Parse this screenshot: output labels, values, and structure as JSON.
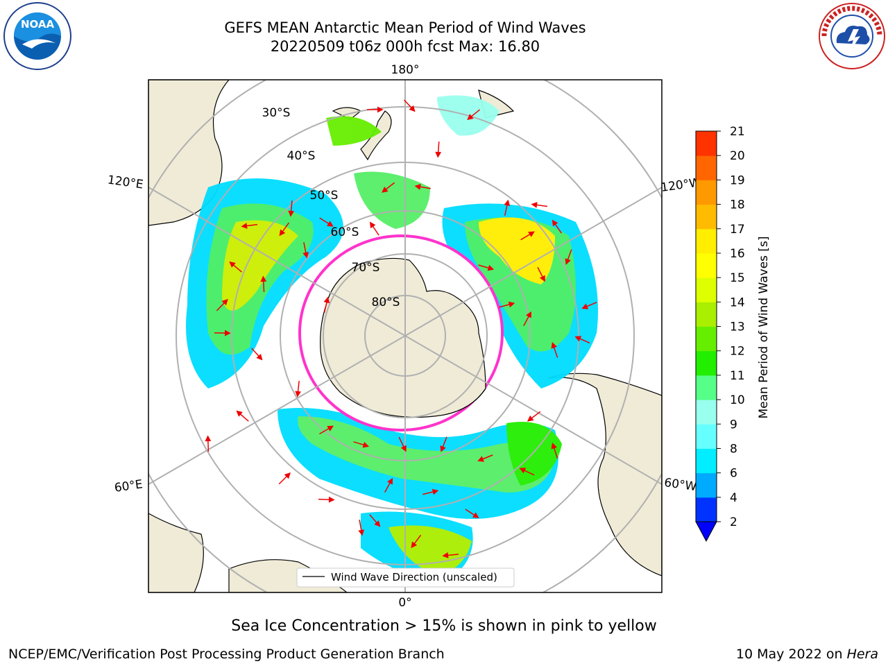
{
  "header": {
    "title_line1": "GEFS MEAN Antarctic Mean Period of Wind Waves",
    "title_line2": "20220509 t06z 000h fcst   Max: 16.80"
  },
  "logos": {
    "left": "noaa-logo",
    "right": "national-weather-service-logo"
  },
  "map": {
    "projection": "south-polar-stereographic",
    "longitude_labels": {
      "top": "180°",
      "upper_left": "120°E",
      "upper_right": "120°W",
      "lower_left": "60°E",
      "lower_right": "60°W",
      "bottom": "0°"
    },
    "latitude_labels": [
      "30°S",
      "40°S",
      "50°S",
      "60°S",
      "70°S",
      "80°S"
    ],
    "legend": "Wind Wave Direction (unscaled)",
    "sea_ice_color_range": "pink to yellow"
  },
  "colorbar": {
    "label": "Mean Period of Wind Waves [s]",
    "ticks": [
      "2",
      "4",
      "6",
      "8",
      "9",
      "10",
      "11",
      "12",
      "13",
      "14",
      "15",
      "16",
      "17",
      "18",
      "19",
      "20",
      "21"
    ],
    "colors": [
      "#0033ff",
      "#00aaff",
      "#00eeff",
      "#66ffff",
      "#99ffee",
      "#55ff88",
      "#22ee00",
      "#66ee00",
      "#aaee00",
      "#ddff00",
      "#ffff00",
      "#ffee00",
      "#ffbb00",
      "#ff9900",
      "#ff6600",
      "#ff3300",
      "#ff0000"
    ],
    "extend_min_color": "#0000ff"
  },
  "footer": {
    "sea_ice_note": "Sea Ice Concentration > 15% is shown in pink to yellow",
    "branch": "NCEP/EMC/Verification Post Processing Product Generation Branch",
    "date": "10 May 2022 on ",
    "host": "Hera"
  },
  "colors": {
    "land": "#efebd7",
    "grid": "#b0b0b0",
    "arrow": "#ee0000",
    "ice_edge": "#ff33cc"
  }
}
